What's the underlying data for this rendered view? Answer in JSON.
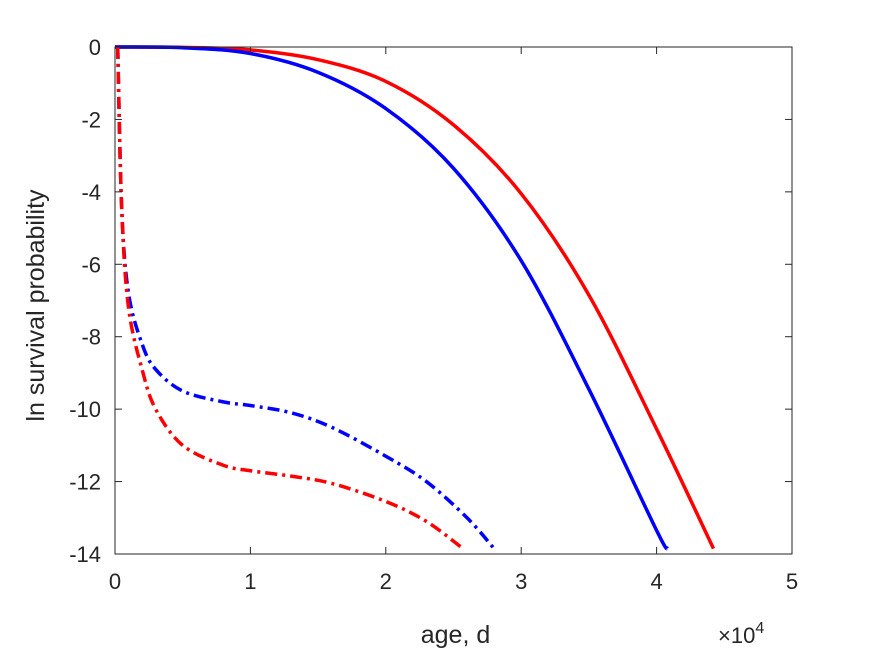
{
  "chart_data": {
    "type": "line",
    "xlabel": "age, d",
    "ylabel": "ln survival probability",
    "x_multiplier_label": "×10",
    "x_multiplier_exp": "4",
    "xlim": [
      0,
      5
    ],
    "ylim": [
      -14,
      0
    ],
    "xticks": [
      "0",
      "1",
      "2",
      "3",
      "4",
      "5"
    ],
    "yticks": [
      "0",
      "-2",
      "-4",
      "-6",
      "-8",
      "-10",
      "-12",
      "-14"
    ],
    "grid": false,
    "series": [
      {
        "color": "#ff0000",
        "style": "solid",
        "x": [
          0,
          0.5,
          1.0,
          1.5,
          2.0,
          2.5,
          3.0,
          3.5,
          4.0,
          4.42
        ],
        "y": [
          0,
          -0.01,
          -0.08,
          -0.35,
          -0.95,
          -2.15,
          -4.05,
          -6.85,
          -10.55,
          -13.85
        ]
      },
      {
        "color": "#0000ff",
        "style": "solid",
        "x": [
          0,
          0.5,
          1.0,
          1.5,
          2.0,
          2.5,
          3.0,
          3.5,
          4.0,
          4.08
        ],
        "y": [
          0,
          -0.02,
          -0.18,
          -0.7,
          -1.7,
          -3.35,
          -5.9,
          -9.45,
          -13.35,
          -13.85
        ]
      },
      {
        "color": "#0000ff",
        "style": "dashdot",
        "x": [
          0.02,
          0.05,
          0.1,
          0.2,
          0.3,
          0.5,
          0.8,
          1.0,
          1.3,
          1.6,
          2.0,
          2.3,
          2.6,
          2.8
        ],
        "y": [
          0,
          -4.5,
          -6.8,
          -8.2,
          -8.9,
          -9.5,
          -9.8,
          -9.9,
          -10.1,
          -10.5,
          -11.3,
          -12.0,
          -13.0,
          -13.85
        ]
      },
      {
        "color": "#ff0000",
        "style": "dashdot",
        "x": [
          0.02,
          0.05,
          0.1,
          0.2,
          0.3,
          0.5,
          0.8,
          1.0,
          1.3,
          1.6,
          2.0,
          2.3,
          2.57
        ],
        "y": [
          0,
          -4.5,
          -7.2,
          -8.9,
          -10.0,
          -11.0,
          -11.55,
          -11.7,
          -11.85,
          -12.05,
          -12.55,
          -13.1,
          -13.85
        ]
      }
    ]
  }
}
